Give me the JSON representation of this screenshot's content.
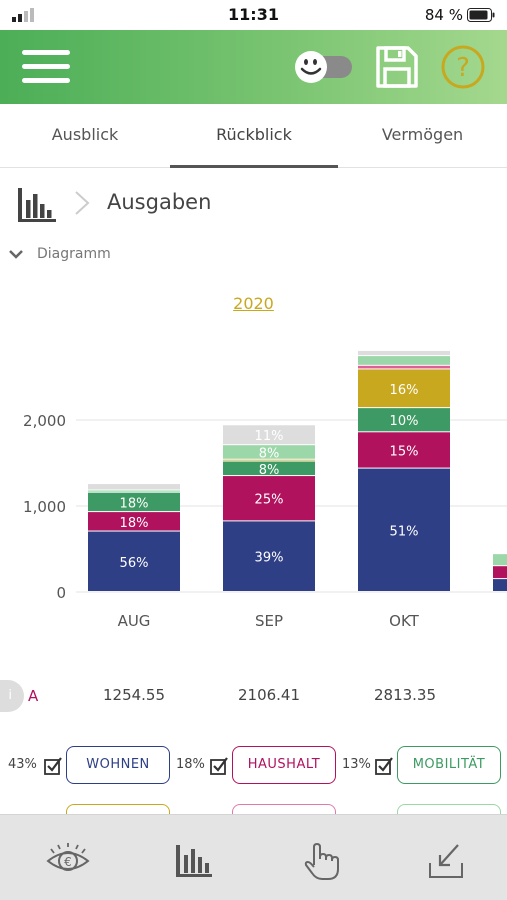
{
  "status": {
    "time": "11:31",
    "battery": "84 %"
  },
  "tabs": [
    {
      "label": "Ausblick",
      "active": false
    },
    {
      "label": "Rückblick",
      "active": true
    },
    {
      "label": "Vermögen",
      "active": false
    }
  ],
  "section": {
    "title": "Ausgaben",
    "toggle_label": "Diagramm"
  },
  "year": "2020",
  "colors": {
    "header_green": "#56b15d",
    "wohnen": "#2f3f86",
    "haushalt": "#b0125e",
    "mobilitaet": "#3e9a64",
    "gold": "#c8a81f",
    "light_green": "#9bd7a8",
    "pink": "#e05f9a",
    "light_gray": "#dddddd"
  },
  "chart_data": {
    "type": "bar",
    "stacked": true,
    "categories": [
      "AUG",
      "SEP",
      "OKT",
      ""
    ],
    "ylim": [
      0,
      2800
    ],
    "y_ticks": [
      "0",
      "1,000",
      "2,000"
    ],
    "y_tick_values": [
      0,
      1000,
      2000
    ],
    "grid": true,
    "series": [
      {
        "color": "#2f3f86",
        "values": [
          703,
          821,
          1435,
          150
        ],
        "labels": [
          "56%",
          "39%",
          "51%",
          ""
        ]
      },
      {
        "color": "#b0125e",
        "values": [
          226,
          527,
          422,
          150
        ],
        "labels": [
          "18%",
          "25%",
          "15%",
          ""
        ]
      },
      {
        "color": "#3e9a64",
        "values": [
          226,
          169,
          281,
          0
        ],
        "labels": [
          "18%",
          "8%",
          "10%",
          ""
        ]
      },
      {
        "color": "#c8a81f",
        "values": [
          0,
          21,
          450,
          0
        ],
        "labels": [
          "",
          "",
          "16%",
          ""
        ]
      },
      {
        "color": "#e05f9a",
        "values": [
          0,
          0,
          42,
          0
        ],
        "labels": [
          "",
          "",
          "",
          ""
        ]
      },
      {
        "color": "#9bd7a8",
        "values": [
          25,
          169,
          113,
          140
        ],
        "labels": [
          "",
          "8%",
          "",
          ""
        ]
      },
      {
        "color": "#dddddd",
        "values": [
          75,
          232,
          60,
          0
        ],
        "labels": [
          "",
          "11%",
          "",
          ""
        ]
      }
    ],
    "row_label": "A",
    "totals": [
      "1254.55",
      "2106.41",
      "2813.35"
    ]
  },
  "categories": [
    {
      "pct": "43%",
      "label": "WOHNEN",
      "color": "#2f3f86"
    },
    {
      "pct": "18%",
      "label": "HAUSHALT",
      "color": "#b0125e"
    },
    {
      "pct": "13%",
      "label": "MOBILITÄT",
      "color": "#3e9a64"
    }
  ],
  "nav": [
    {
      "icon": "euro-eye-icon"
    },
    {
      "icon": "bar-chart-icon"
    },
    {
      "icon": "hand-pointer-icon"
    },
    {
      "icon": "download-tray-icon"
    }
  ]
}
